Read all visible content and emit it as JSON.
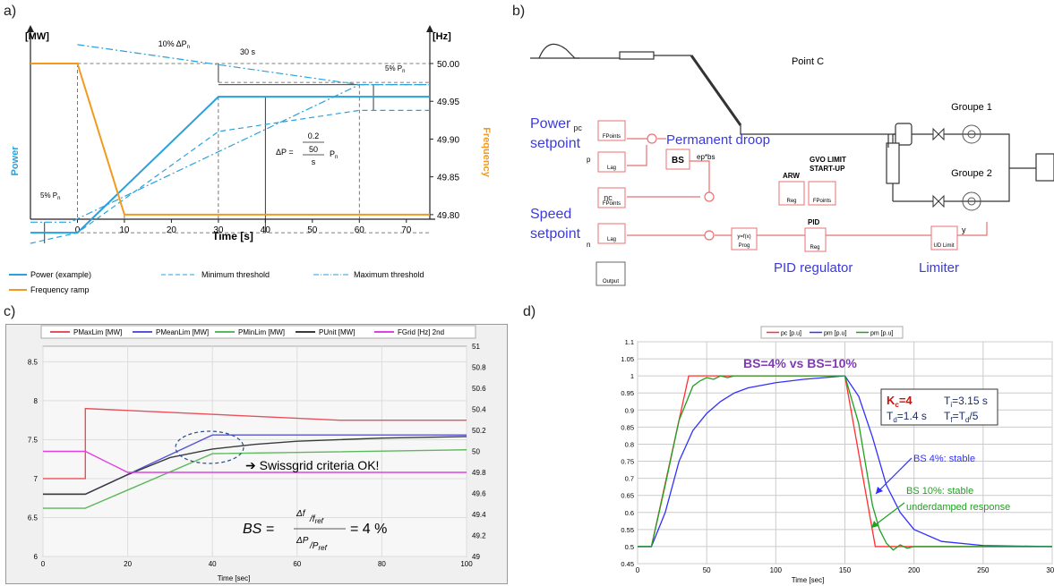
{
  "panel_labels": {
    "a": "a)",
    "b": "b)",
    "c": "c)",
    "d": "d)"
  },
  "colors": {
    "power": "#2aa1dd",
    "frequency": "#f39a1e",
    "pmax": "#e8505b",
    "pmean": "#5757d6",
    "pmin": "#5cb85c",
    "punit": "#3a3a3a",
    "fgrid": "#e040e0",
    "pc": "#ff3030",
    "pm_blue": "#3030ff",
    "pm_green": "#20a020",
    "flow": "#e87070"
  },
  "chart_data": [
    {
      "id": "a",
      "type": "line",
      "unit_left": "[MW]",
      "unit_right": "[Hz]",
      "ylabel_left": "Power",
      "ylabel_right": "Frequency",
      "xlabel": "Time [s]",
      "xticks": [
        "0",
        "10",
        "20",
        "30",
        "40",
        "50",
        "60",
        "70"
      ],
      "xlim": [
        -10,
        75
      ],
      "yticks_right": [
        "50.00",
        "49.95",
        "49.90",
        "49.85",
        "49.80"
      ],
      "yrange_right": [
        49.775,
        50.0
      ],
      "series": [
        {
          "name": "Power (example)",
          "style": "solid",
          "color": "#2aa1dd",
          "x": [
            -10,
            0,
            30,
            75
          ],
          "y": [
            49.776,
            49.776,
            49.956,
            49.956
          ]
        },
        {
          "name": "Minimum threshold",
          "style": "dashed",
          "color": "#2aa1dd",
          "x": [
            -10,
            0,
            30,
            60,
            75
          ],
          "y": [
            49.762,
            49.776,
            49.91,
            49.938,
            49.938
          ]
        },
        {
          "name": "Maximum threshold",
          "style": "dashdot",
          "color": "#2aa1dd",
          "x": [
            -10,
            -1.5,
            60,
            75
          ],
          "y": [
            49.79,
            49.79,
            49.972,
            49.972
          ]
        },
        {
          "name": "Maximum threshold upper",
          "style": "dashdot",
          "color": "#2aa1dd",
          "x": [
            0,
            60,
            75
          ],
          "y": [
            50.025,
            49.972,
            49.972
          ]
        },
        {
          "name": "Frequency ramp",
          "style": "solid",
          "color": "#f39a1e",
          "x": [
            -10,
            0,
            10,
            75
          ],
          "y": [
            50.0,
            50.0,
            49.8,
            49.8
          ]
        }
      ],
      "annotations": {
        "ten_pct": "10% ΔP",
        "ten_pct_sub": "n",
        "thirty_s": "30 s",
        "five_pct_right": "5% P",
        "five_pct_right_sub": "n",
        "five_pct_left": "5% P",
        "five_pct_left_sub": "n",
        "delta_p": "ΔP =",
        "frac_top": "0.2",
        "frac_mid": "50",
        "frac_bot": "s",
        "frac_pn": "P",
        "frac_pn_sub": "n"
      },
      "legend": [
        "Power (example)",
        "Minimum threshold",
        "Maximum threshold",
        "Frequency ramp"
      ]
    },
    {
      "id": "c",
      "type": "line",
      "xlabel": "Time [sec]",
      "xticks": [
        "0",
        "20",
        "40",
        "60",
        "80",
        "100"
      ],
      "xlim": [
        0,
        100
      ],
      "yticks_left": [
        "6",
        "6.5",
        "7",
        "7.5",
        "8",
        "8.5"
      ],
      "ylim_left": [
        6,
        8.7
      ],
      "yticks_right": [
        "49",
        "49.2",
        "49.4",
        "49.6",
        "49.8",
        "50",
        "50.2",
        "50.4",
        "50.6",
        "50.8",
        "51"
      ],
      "ylim_right": [
        49,
        51
      ],
      "legend": [
        "PMaxLim [MW]",
        "PMeanLim [MW]",
        "PMinLim [MW]",
        "PUnit [MW]",
        "FGrid [Hz] 2nd"
      ],
      "series": [
        {
          "name": "PMaxLim [MW]",
          "color": "#e8505b",
          "x": [
            0,
            10,
            10,
            70,
            100
          ],
          "y": [
            7.0,
            7.0,
            7.9,
            7.75,
            7.75
          ]
        },
        {
          "name": "PMeanLim [MW]",
          "color": "#5757d6",
          "x": [
            0,
            10,
            40,
            100
          ],
          "y": [
            6.8,
            6.8,
            7.56,
            7.56
          ]
        },
        {
          "name": "PMinLim [MW]",
          "color": "#5cb85c",
          "x": [
            0,
            10,
            40,
            100
          ],
          "y": [
            6.62,
            6.62,
            7.32,
            7.37
          ]
        },
        {
          "name": "PUnit [MW]",
          "color": "#3a3a3a",
          "x": [
            0,
            10,
            20,
            30,
            40,
            50,
            60,
            70,
            80,
            90,
            100
          ],
          "y": [
            6.8,
            6.8,
            7.05,
            7.27,
            7.38,
            7.44,
            7.48,
            7.5,
            7.52,
            7.53,
            7.54
          ]
        },
        {
          "name": "FGrid [Hz] 2nd",
          "color": "#e040e0",
          "axis": "right",
          "x": [
            0,
            10,
            20,
            100
          ],
          "y": [
            50.0,
            50.0,
            49.8,
            49.8
          ]
        }
      ],
      "annotation": "➔ Swissgrid criteria OK!",
      "formula": {
        "lhs": "BS =",
        "num_top": "Δf",
        "num_bot": "f",
        "num_bot_sub": "ref",
        "den_top": "ΔP",
        "den_bot": "P",
        "den_bot_sub": "ref",
        "rhs": "= 4 %"
      }
    },
    {
      "id": "d",
      "type": "line",
      "xlabel": "Time [sec]",
      "xticks": [
        "0",
        "50",
        "100",
        "150",
        "200",
        "250",
        "300"
      ],
      "xlim": [
        0,
        300
      ],
      "yticks": [
        "0.45",
        "0.5",
        "0.55",
        "0.6",
        "0.65",
        "0.7",
        "0.75",
        "0.8",
        "0.85",
        "0.9",
        "0.95",
        "1",
        "1.05",
        "1.1"
      ],
      "ylim": [
        0.45,
        1.1
      ],
      "legend": [
        "pc [p.u]",
        "pm [p.u]",
        "pm [p.u]"
      ],
      "series": [
        {
          "name": "pc [p.u]",
          "color": "#ff3030",
          "x": [
            0,
            10,
            37,
            150,
            172,
            300
          ],
          "y": [
            0.5,
            0.5,
            1.0,
            1.0,
            0.5,
            0.5
          ]
        },
        {
          "name": "pm [p.u]",
          "color": "#3030ff",
          "x": [
            0,
            10,
            20,
            30,
            40,
            50,
            60,
            70,
            80,
            100,
            120,
            150,
            160,
            170,
            180,
            190,
            200,
            220,
            250,
            300
          ],
          "y": [
            0.5,
            0.5,
            0.6,
            0.75,
            0.84,
            0.89,
            0.925,
            0.95,
            0.965,
            0.98,
            0.99,
            1.0,
            0.94,
            0.82,
            0.68,
            0.6,
            0.55,
            0.515,
            0.503,
            0.5
          ]
        },
        {
          "name": "pm [p.u]",
          "color": "#20a020",
          "x": [
            0,
            10,
            20,
            30,
            40,
            45,
            50,
            55,
            60,
            65,
            70,
            80,
            90,
            100,
            150,
            160,
            170,
            175,
            180,
            185,
            190,
            195,
            200,
            210,
            300
          ],
          "y": [
            0.5,
            0.5,
            0.68,
            0.87,
            0.97,
            0.985,
            0.995,
            0.99,
            1.0,
            0.995,
            1.0,
            1.0,
            1.0,
            1.0,
            1.0,
            0.86,
            0.62,
            0.55,
            0.51,
            0.49,
            0.505,
            0.495,
            0.5,
            0.5,
            0.5
          ]
        }
      ],
      "title_annotation": "BS=4% vs BS=10%",
      "params": {
        "kc": "K",
        "kc_sub": "c",
        "kc_val": "=4",
        "ti": "T",
        "ti_sub": "i",
        "ti_val": "=3.15 s",
        "td": "T",
        "td_sub": "d",
        "td_val": "=1.4 s",
        "tf": "T",
        "tf_sub": "f",
        "tf_val": "=T",
        "tf_sub2": "d",
        "tf_val2": "/5"
      },
      "labels": {
        "bs4": "BS 4%: stable",
        "bs10a": "BS 10%: stable",
        "bs10b": "underdamped response"
      }
    }
  ],
  "diagram_b": {
    "power": "Power",
    "power_sub": "pc",
    "setpoint1": "setpoint",
    "p": "p",
    "speed": "Speed",
    "speed_sub": "nc",
    "setpoint2": "setpoint",
    "n": "n",
    "permanent_droop": "Permanent droop",
    "bs": "BS",
    "ep_bs": "ep*bs",
    "arw": "ARW",
    "gvo1": "GVO LIMIT",
    "gvo2": "START-UP",
    "pid": "PID",
    "pid_regulator": "PID regulator",
    "limiter": "Limiter",
    "y": "y",
    "point_c": "Point C",
    "groupe1": "Groupe 1",
    "groupe2": "Groupe 2",
    "blocks": {
      "fpoints": "FPoints",
      "lag": "Lag",
      "reg": "Reg",
      "prog": "Prog",
      "yfx": "y=f(x)",
      "udlimit": "UD Limit",
      "output": "Output"
    }
  }
}
